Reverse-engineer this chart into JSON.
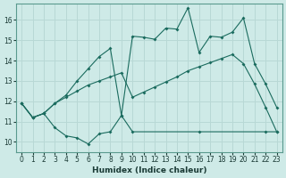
{
  "xlabel": "Humidex (Indice chaleur)",
  "bg_color": "#ceeae7",
  "grid_color": "#b8d8d5",
  "line_color": "#1a6b5e",
  "xlim": [
    -0.5,
    23.5
  ],
  "ylim": [
    9.5,
    16.8
  ],
  "yticks": [
    10,
    11,
    12,
    13,
    14,
    15,
    16
  ],
  "xticks": [
    0,
    1,
    2,
    3,
    4,
    5,
    6,
    7,
    8,
    9,
    10,
    11,
    12,
    13,
    14,
    15,
    16,
    17,
    18,
    19,
    20,
    21,
    22,
    23
  ],
  "line_bottom_x": [
    0,
    1,
    2,
    3,
    4,
    5,
    6,
    7,
    8,
    9,
    10,
    16,
    22,
    23
  ],
  "line_bottom_y": [
    11.9,
    11.2,
    11.4,
    10.7,
    10.3,
    10.2,
    9.9,
    10.4,
    10.5,
    11.3,
    10.5,
    10.5,
    10.5,
    10.5
  ],
  "line_mid_x": [
    0,
    1,
    2,
    3,
    4,
    5,
    6,
    7,
    8,
    9,
    10,
    11,
    12,
    13,
    14,
    15,
    16,
    17,
    18,
    19,
    20,
    21,
    22,
    23
  ],
  "line_mid_y": [
    11.9,
    11.2,
    11.4,
    11.9,
    12.2,
    12.5,
    12.8,
    13.0,
    13.2,
    13.4,
    12.2,
    12.45,
    12.7,
    12.95,
    13.2,
    13.5,
    13.7,
    13.9,
    14.1,
    14.3,
    13.85,
    12.85,
    11.7,
    10.5
  ],
  "line_top_x": [
    0,
    1,
    2,
    3,
    4,
    5,
    6,
    7,
    8,
    9,
    10,
    11,
    12,
    13,
    14,
    15,
    16,
    17,
    18,
    19,
    20,
    21,
    22,
    23
  ],
  "line_top_y": [
    11.9,
    11.2,
    11.4,
    11.9,
    12.3,
    13.0,
    13.6,
    14.2,
    14.6,
    11.3,
    15.2,
    15.15,
    15.05,
    15.6,
    15.55,
    16.6,
    14.4,
    15.2,
    15.15,
    15.4,
    16.1,
    13.85,
    12.85,
    11.7
  ]
}
